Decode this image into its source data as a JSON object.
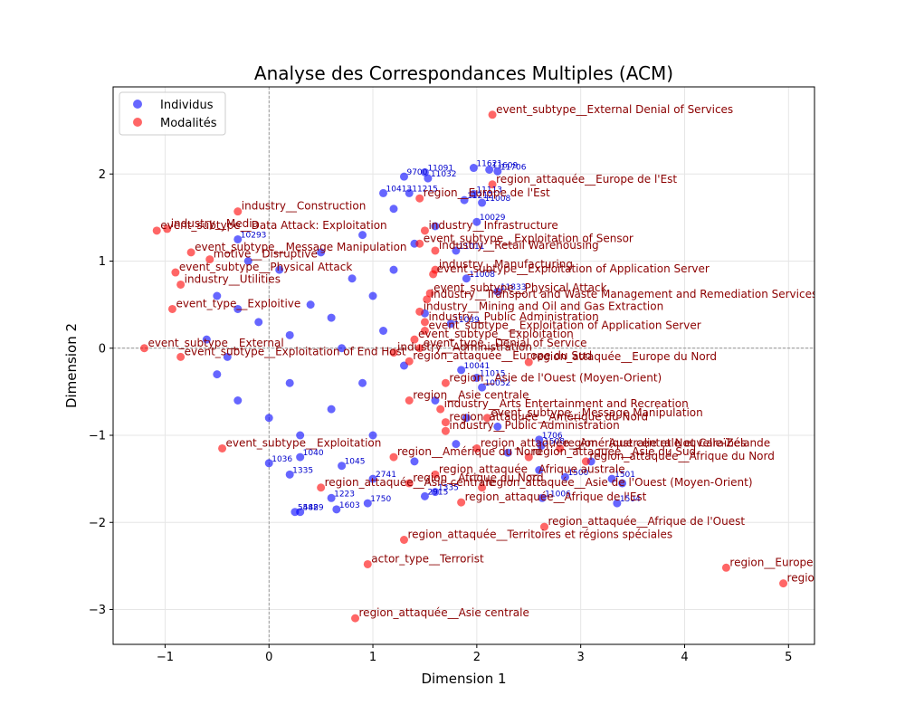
{
  "chart_data": {
    "type": "scatter",
    "title": "Analyse des Correspondances Multiples (ACM)",
    "xlabel": "Dimension 1",
    "ylabel": "Dimension 2",
    "xlim": [
      -1.5,
      5.25
    ],
    "ylim": [
      -3.4,
      3.0
    ],
    "xticks": [
      -1,
      0,
      1,
      2,
      3,
      4,
      5
    ],
    "yticks": [
      -3,
      -2,
      -1,
      0,
      1,
      2
    ],
    "grid": true,
    "origin_lines": true,
    "legend_position": "top-left",
    "colors": {
      "individus": "#0000ff",
      "modalites": "#ff0000",
      "modalite_label": "#8b0000",
      "individu_label": "#0000cc"
    },
    "series": [
      {
        "name": "Individus",
        "points": [
          {
            "x": 1.97,
            "y": 2.07,
            "label": "11621"
          },
          {
            "x": 2.12,
            "y": 2.05,
            "label": "11609"
          },
          {
            "x": 2.2,
            "y": 2.03,
            "label": "11706"
          },
          {
            "x": 1.5,
            "y": 2.02,
            "label": "11091"
          },
          {
            "x": 1.3,
            "y": 1.97,
            "label": "9700"
          },
          {
            "x": 1.53,
            "y": 1.95,
            "label": "11032"
          },
          {
            "x": 1.1,
            "y": 1.78,
            "label": "10413"
          },
          {
            "x": 1.35,
            "y": 1.78,
            "label": "11215"
          },
          {
            "x": 1.97,
            "y": 1.77,
            "label": "11113"
          },
          {
            "x": 1.88,
            "y": 1.7,
            "label": "11212"
          },
          {
            "x": 2.05,
            "y": 1.67,
            "label": "11008"
          },
          {
            "x": 2.0,
            "y": 1.45,
            "label": "10029"
          },
          {
            "x": -0.3,
            "y": 1.25,
            "label": "10293"
          },
          {
            "x": 1.8,
            "y": 1.12,
            "label": "11011"
          },
          {
            "x": 1.9,
            "y": 0.8,
            "label": "11008"
          },
          {
            "x": 2.2,
            "y": 0.65,
            "label": "11833"
          },
          {
            "x": 1.75,
            "y": 0.28,
            "label": "11039"
          },
          {
            "x": 1.85,
            "y": -0.25,
            "label": "10041"
          },
          {
            "x": 2.0,
            "y": -0.34,
            "label": "11015"
          },
          {
            "x": 2.05,
            "y": -0.45,
            "label": "10052"
          },
          {
            "x": 2.6,
            "y": -1.05,
            "label": "1706"
          },
          {
            "x": 2.62,
            "y": -1.12,
            "label": "1508"
          },
          {
            "x": 3.3,
            "y": -1.5,
            "label": "1501"
          },
          {
            "x": 2.85,
            "y": -1.48,
            "label": "1500"
          },
          {
            "x": 2.63,
            "y": -1.72,
            "label": "11006"
          },
          {
            "x": 3.35,
            "y": -1.78,
            "label": "1504"
          },
          {
            "x": 1.6,
            "y": -1.65,
            "label": "1335"
          },
          {
            "x": 1.5,
            "y": -1.7,
            "label": "2915"
          },
          {
            "x": 0.95,
            "y": -1.78,
            "label": "1750"
          },
          {
            "x": 0.65,
            "y": -1.85,
            "label": "1603"
          },
          {
            "x": 0.25,
            "y": -1.88,
            "label": "5482"
          },
          {
            "x": 0.3,
            "y": -1.88,
            "label": "5489"
          },
          {
            "x": 0.6,
            "y": -1.72,
            "label": "1223"
          },
          {
            "x": 1.0,
            "y": -1.5,
            "label": "2741"
          },
          {
            "x": 0.2,
            "y": -1.45,
            "label": "1335"
          },
          {
            "x": 0.0,
            "y": -1.32,
            "label": "1036"
          },
          {
            "x": 0.7,
            "y": -1.35,
            "label": "1045"
          },
          {
            "x": 0.3,
            "y": -1.25,
            "label": "1040"
          },
          {
            "x": -0.5,
            "y": 0.6
          },
          {
            "x": -0.3,
            "y": 0.45
          },
          {
            "x": -0.1,
            "y": 0.3
          },
          {
            "x": 0.2,
            "y": 0.15
          },
          {
            "x": 0.4,
            "y": 0.5
          },
          {
            "x": 0.6,
            "y": 0.35
          },
          {
            "x": 0.8,
            "y": 0.8
          },
          {
            "x": 1.0,
            "y": 0.6
          },
          {
            "x": 1.2,
            "y": 0.9
          },
          {
            "x": 1.4,
            "y": 1.2
          },
          {
            "x": 1.6,
            "y": 1.4
          },
          {
            "x": -0.5,
            "y": -0.3
          },
          {
            "x": -0.3,
            "y": -0.6
          },
          {
            "x": 0.0,
            "y": -0.8
          },
          {
            "x": 0.3,
            "y": -1.0
          },
          {
            "x": 0.6,
            "y": -0.7
          },
          {
            "x": 0.9,
            "y": -0.4
          },
          {
            "x": 1.3,
            "y": -0.2
          },
          {
            "x": 1.6,
            "y": -0.6
          },
          {
            "x": 1.9,
            "y": -0.8
          },
          {
            "x": 2.3,
            "y": -1.2
          },
          {
            "x": 2.6,
            "y": -1.4
          },
          {
            "x": 3.1,
            "y": -1.3
          },
          {
            "x": 3.4,
            "y": -1.55
          },
          {
            "x": 0.1,
            "y": 0.9
          },
          {
            "x": -0.2,
            "y": 1.0
          },
          {
            "x": 0.5,
            "y": 1.1
          },
          {
            "x": 0.9,
            "y": 1.3
          },
          {
            "x": 1.2,
            "y": 1.6
          },
          {
            "x": 0.7,
            "y": 0.0
          },
          {
            "x": 1.1,
            "y": 0.2
          },
          {
            "x": 1.5,
            "y": 0.4
          },
          {
            "x": -0.6,
            "y": 0.1
          },
          {
            "x": -0.4,
            "y": -0.1
          },
          {
            "x": 0.2,
            "y": -0.4
          },
          {
            "x": 1.0,
            "y": -1.0
          },
          {
            "x": 1.4,
            "y": -1.3
          },
          {
            "x": 1.8,
            "y": -1.1
          },
          {
            "x": 2.2,
            "y": -0.9
          }
        ]
      },
      {
        "name": "Modalités",
        "points": [
          {
            "x": 2.15,
            "y": 2.68,
            "label": "event_subtype__External Denial of Services"
          },
          {
            "x": 2.15,
            "y": 1.88,
            "label": "region_attaquée__Europe de l'Est"
          },
          {
            "x": 1.45,
            "y": 1.72,
            "label": "region__Europe de l'Est"
          },
          {
            "x": -0.3,
            "y": 1.57,
            "label": "industry__Construction"
          },
          {
            "x": -1.08,
            "y": 1.35,
            "label": "event_subtype__Data Attack: Exploitation"
          },
          {
            "x": -0.98,
            "y": 1.37,
            "label": "industry__Media"
          },
          {
            "x": 1.5,
            "y": 1.35,
            "label": "industry__Infrastructure"
          },
          {
            "x": 1.45,
            "y": 1.2,
            "label": "event_subtype__Exploitation of Sensor"
          },
          {
            "x": -0.75,
            "y": 1.1,
            "label": "event_subtype__Message Manipulation"
          },
          {
            "x": 1.6,
            "y": 1.12,
            "label": "industry__Retail Warehousing"
          },
          {
            "x": -0.57,
            "y": 1.02,
            "label": "motive__Disruptive"
          },
          {
            "x": -0.9,
            "y": 0.87,
            "label": "event_subtype__Physical Attack"
          },
          {
            "x": 1.6,
            "y": 0.9,
            "label": "industry__Manufacturing"
          },
          {
            "x": -0.85,
            "y": 0.73,
            "label": "industry__Utilities"
          },
          {
            "x": 1.58,
            "y": 0.85,
            "label": "event_subtype__Exploitation of Application Server"
          },
          {
            "x": 1.55,
            "y": 0.63,
            "label": "event_subtype__Physical Attack"
          },
          {
            "x": 1.52,
            "y": 0.56,
            "label": "industry__Transport and Waste Management and Remediation Services"
          },
          {
            "x": -0.93,
            "y": 0.45,
            "label": "event_type__Exploitive"
          },
          {
            "x": 1.45,
            "y": 0.42,
            "label": "industry__Mining and Oil and Gas Extraction"
          },
          {
            "x": 1.5,
            "y": 0.3,
            "label": "industry__Public Administration"
          },
          {
            "x": 1.5,
            "y": 0.2,
            "label": "event_subtype__Exploitation of Application Server"
          },
          {
            "x": 1.4,
            "y": 0.1,
            "label": "event_subtype__Exploitation"
          },
          {
            "x": 1.45,
            "y": 0.0,
            "label": "event_type__Denial of Service"
          },
          {
            "x": -1.2,
            "y": 0.0,
            "label": "event_subtype__External"
          },
          {
            "x": 1.2,
            "y": -0.05,
            "label": "industry__Administration"
          },
          {
            "x": -0.85,
            "y": -0.1,
            "label": "event_subtype__Exploitation of End Host"
          },
          {
            "x": 2.5,
            "y": -0.16,
            "label": "region_attaquée__Europe du Nord"
          },
          {
            "x": 1.35,
            "y": -0.15,
            "label": "region_attaquée__Europe du Sud"
          },
          {
            "x": 1.7,
            "y": -0.4,
            "label": "region__Asie de l'Ouest (Moyen-Orient)"
          },
          {
            "x": 1.35,
            "y": -0.6,
            "label": "region__Asie centrale"
          },
          {
            "x": 1.65,
            "y": -0.7,
            "label": "industry__Arts Entertainment and Recreation"
          },
          {
            "x": 2.1,
            "y": -0.8,
            "label": "event_subtype__Message Manipulation"
          },
          {
            "x": 1.7,
            "y": -0.85,
            "label": "region_attaquée__Amérique du Nord"
          },
          {
            "x": 1.7,
            "y": -0.95,
            "label": "industry__Public Administration"
          },
          {
            "x": -0.45,
            "y": -1.15,
            "label": "event_subtype__Exploitation"
          },
          {
            "x": 2.8,
            "y": -1.15,
            "label": "region__Australie et Nouvelle-Zélande"
          },
          {
            "x": 2.0,
            "y": -1.15,
            "label": "region_attaquée__Amérique centrale et Caraïbes"
          },
          {
            "x": 1.2,
            "y": -1.25,
            "label": "region__Amérique du Nord"
          },
          {
            "x": 2.5,
            "y": -1.25,
            "label": "region_attaquée__Asie du Sud"
          },
          {
            "x": 3.05,
            "y": -1.3,
            "label": "region_attaquée__Afrique du Nord"
          },
          {
            "x": 1.6,
            "y": -1.45,
            "label": "region_attaquée__Afrique australe"
          },
          {
            "x": 1.35,
            "y": -1.55,
            "label": "region__Afrique du Nord"
          },
          {
            "x": 2.05,
            "y": -1.6,
            "label": "region_attaquée__Asie de l'Ouest (Moyen-Orient)"
          },
          {
            "x": 0.5,
            "y": -1.6,
            "label": "region_attaquée__Asie centrale"
          },
          {
            "x": 1.85,
            "y": -1.77,
            "label": "region_attaquée__Afrique de l'Est"
          },
          {
            "x": 2.65,
            "y": -2.05,
            "label": "region_attaquée__Afrique de l'Ouest"
          },
          {
            "x": 1.3,
            "y": -2.2,
            "label": "region_attaquée__Territoires et régions spéciales"
          },
          {
            "x": 0.95,
            "y": -2.48,
            "label": "actor_type__Terrorist"
          },
          {
            "x": 4.4,
            "y": -2.52,
            "label": "region__Europe de l'Est (ex-URSS)"
          },
          {
            "x": 4.95,
            "y": -2.7,
            "label": "region_attaquée__Europe de l'Est (ex-URSS)"
          },
          {
            "x": 0.83,
            "y": -3.1,
            "label": "region_attaquée__Asie centrale"
          }
        ]
      }
    ]
  }
}
